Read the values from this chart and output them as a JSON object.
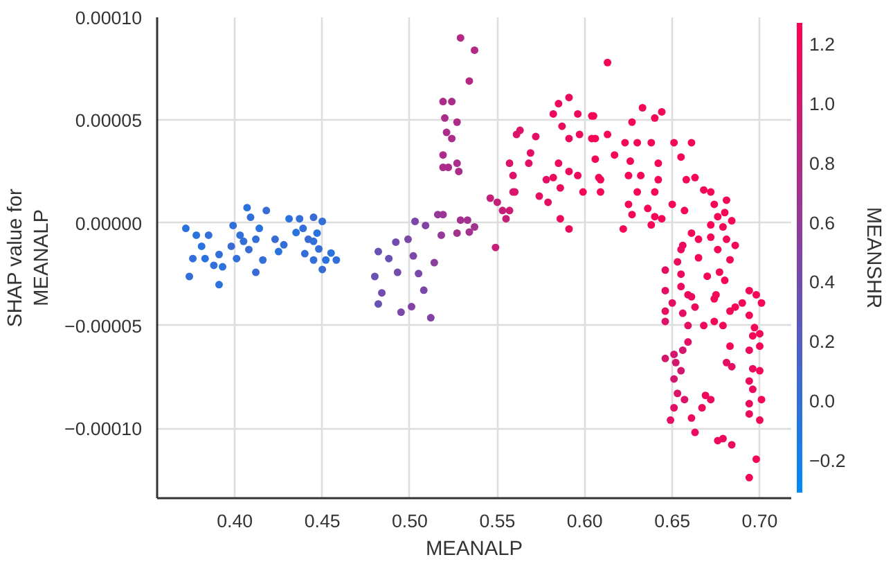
{
  "chart_data": {
    "type": "scatter",
    "xlabel": "MEANALP",
    "ylabel": "SHAP value for\nMEANALP",
    "clabel": "MEANSHR",
    "marker": "circle",
    "grid": true,
    "xlim": [
      0.3556,
      0.718
    ],
    "ylim": [
      -0.000134,
      0.0001
    ],
    "xticks": [
      {
        "value": 0.4,
        "label": "0.40"
      },
      {
        "value": 0.45,
        "label": "0.45"
      },
      {
        "value": 0.5,
        "label": "0.50"
      },
      {
        "value": 0.55,
        "label": "0.55"
      },
      {
        "value": 0.6,
        "label": "0.60"
      },
      {
        "value": 0.65,
        "label": "0.65"
      },
      {
        "value": 0.7,
        "label": "0.70"
      }
    ],
    "yticks": [
      {
        "value": -0.0001,
        "label": "−0.00010"
      },
      {
        "value": -5e-05,
        "label": "−0.00005"
      },
      {
        "value": 0,
        "label": "0.00000"
      },
      {
        "value": 5e-05,
        "label": "0.00005"
      },
      {
        "value": 0.0001,
        "label": "0.00010"
      }
    ],
    "clim": [
      -0.31,
      1.27
    ],
    "cticks": [
      {
        "value": -0.2,
        "label": "−0.2"
      },
      {
        "value": 0,
        "label": "0.0"
      },
      {
        "value": 0.2,
        "label": "0.2"
      },
      {
        "value": 0.4,
        "label": "0.4"
      },
      {
        "value": 0.6,
        "label": "0.6"
      },
      {
        "value": 0.8,
        "label": "0.8"
      },
      {
        "value": 1.0,
        "label": "1.0"
      },
      {
        "value": 1.2,
        "label": "1.2"
      }
    ],
    "series": [
      {
        "x": [
          0.372,
          0.378,
          0.385,
          0.381,
          0.376,
          0.383,
          0.374,
          0.391,
          0.388,
          0.393,
          0.391,
          0.398,
          0.399,
          0.407,
          0.409,
          0.418,
          0.403,
          0.414,
          0.412,
          0.423,
          0.428,
          0.425,
          0.416,
          0.412,
          0.401,
          0.431,
          0.437,
          0.445,
          0.439,
          0.435,
          0.45,
          0.442,
          0.448,
          0.452,
          0.458,
          0.45,
          0.445,
          0.455,
          0.405,
          0.408,
          0.445,
          0.447,
          0.44,
          0.482,
          0.488,
          0.48,
          0.484,
          0.482,
          0.492,
          0.493,
          0.499,
          0.503,
          0.509,
          0.502,
          0.505,
          0.508,
          0.501,
          0.495,
          0.512,
          0.514,
          0.518,
          0.516,
          0.529,
          0.533,
          0.537,
          0.534,
          0.519,
          0.527,
          0.519,
          0.524,
          0.52,
          0.527,
          0.521,
          0.524,
          0.519,
          0.519,
          0.522,
          0.527,
          0.528,
          0.529,
          0.537,
          0.534,
          0.546,
          0.55,
          0.553,
          0.555,
          0.549,
          0.559,
          0.557,
          0.561,
          0.563,
          0.557,
          0.559,
          0.569,
          0.568,
          0.572,
          0.56,
          0.574,
          0.579,
          0.578,
          0.585,
          0.591,
          0.582,
          0.587,
          0.591,
          0.596,
          0.597,
          0.604,
          0.585,
          0.591,
          0.582,
          0.596,
          0.586,
          0.599,
          0.586,
          0.591,
          0.604,
          0.606,
          0.608,
          0.613,
          0.605,
          0.633,
          0.644,
          0.64,
          0.627,
          0.606,
          0.613,
          0.623,
          0.63,
          0.638,
          0.651,
          0.661,
          0.617,
          0.626,
          0.642,
          0.655,
          0.625,
          0.632,
          0.642,
          0.609,
          0.609,
          0.63,
          0.64,
          0.625,
          0.636,
          0.627,
          0.64,
          0.644,
          0.65,
          0.657,
          0.622,
          0.638,
          0.658,
          0.663,
          0.668,
          0.672,
          0.674,
          0.681,
          0.68,
          0.676,
          0.684,
          0.672,
          0.679,
          0.661,
          0.665,
          0.672,
          0.681,
          0.686,
          0.656,
          0.655,
          0.676,
          0.665,
          0.683,
          0.653,
          0.646,
          0.655,
          0.67,
          0.677,
          0.68,
          0.646,
          0.655,
          0.659,
          0.65,
          0.661,
          0.646,
          0.656,
          0.663,
          0.674,
          0.675,
          0.683,
          0.686,
          0.69,
          0.694,
          0.698,
          0.701,
          0.694,
          0.646,
          0.659,
          0.668,
          0.674,
          0.679,
          0.697,
          0.7,
          0.696,
          0.694,
          0.7,
          0.683,
          0.659,
          0.651,
          0.656,
          0.646,
          0.652,
          0.681,
          0.684,
          0.655,
          0.696,
          0.7,
          0.651,
          0.694,
          0.696,
          0.653,
          0.657,
          0.669,
          0.672,
          0.651,
          0.667,
          0.694,
          0.701,
          0.649,
          0.661,
          0.694,
          0.7,
          0.663,
          0.676,
          0.679,
          0.684,
          0.698,
          0.694
        ],
        "values": [
          -2.7e-06,
          -6e-06,
          -6e-06,
          -1.14e-05,
          -1.74e-05,
          -1.74e-05,
          -2.61e-05,
          -3.01e-05,
          -2.07e-05,
          -2.14e-05,
          -1.54e-05,
          -1.14e-05,
          -1.3e-06,
          7.4e-06,
          2.7e-06,
          6e-06,
          -6e-06,
          -2.7e-06,
          -8e-06,
          -8e-06,
          -1.07e-05,
          -1.4e-05,
          -1.81e-05,
          -2.41e-05,
          -1.74e-05,
          2e-06,
          2e-06,
          2.7e-06,
          -2.7e-06,
          -4.7e-06,
          7e-07,
          -8e-06,
          -1.27e-05,
          -1.81e-05,
          -1.81e-05,
          -2.27e-05,
          -1.81e-05,
          -1.47e-05,
          -9e-06,
          -1.3e-05,
          -9e-06,
          -5e-06,
          -1.5e-05,
          -1.4e-05,
          -1.74e-05,
          -2.61e-05,
          -3.41e-05,
          -3.95e-05,
          -9.4e-06,
          -2.41e-05,
          -8e-06,
          7e-07,
          -1.3e-06,
          -1.61e-05,
          -2.47e-05,
          -3.28e-05,
          -4.08e-05,
          -4.35e-05,
          -4.62e-05,
          -1.94e-05,
          -6e-06,
          4e-06,
          1.3e-06,
          1.3e-06,
          -2e-06,
          -4.5e-06,
          4e-06,
          -5e-06,
          5.9e-05,
          5.9e-05,
          5.1e-05,
          4.9e-05,
          4.4e-05,
          4.1e-05,
          3.3e-05,
          2.7e-05,
          2.7e-05,
          2.9e-05,
          2.5e-05,
          9e-05,
          8.4e-05,
          6.9e-05,
          1.2e-05,
          1e-05,
          6e-06,
          2e-06,
          -1.2e-05,
          1.5e-05,
          6e-06,
          4.3e-05,
          4.5e-05,
          2.9e-05,
          2.3e-05,
          3.4e-05,
          2.9e-05,
          4.2e-05,
          1.5e-05,
          1.3e-05,
          1e-05,
          2.1e-05,
          5.8e-05,
          6.1e-05,
          5.3e-05,
          4.7e-05,
          4.1e-05,
          5.3e-05,
          4.3e-05,
          4.1e-05,
          2.9e-05,
          2.5e-05,
          2.2e-05,
          2.3e-05,
          1.7e-05,
          1.5e-05,
          2e-06,
          -3e-06,
          5.2e-05,
          3.1e-05,
          2.2e-05,
          7.8e-05,
          5.2e-05,
          5.6e-05,
          5.4e-05,
          5.1e-05,
          4.9e-05,
          4.1e-05,
          4.3e-05,
          3.9e-05,
          3.9e-05,
          3.9e-05,
          3.9e-05,
          3.9e-05,
          3.3e-05,
          3e-05,
          2.9e-05,
          3.2e-05,
          2.3e-05,
          2.3e-05,
          2.1e-05,
          2.1e-05,
          1.5e-05,
          1.5e-05,
          1.5e-05,
          9e-06,
          7e-06,
          4e-06,
          3e-06,
          2e-06,
          9e-06,
          6e-06,
          -3e-06,
          -1e-06,
          2.1e-05,
          2.2e-05,
          1.6e-05,
          1.5e-05,
          9e-06,
          1.1e-05,
          5e-06,
          3e-06,
          1e-06,
          -1e-06,
          -2e-06,
          -5e-06,
          -8e-06,
          -7e-06,
          -8e-06,
          -1.1e-05,
          -1.1e-05,
          -1.3e-05,
          -1.3e-05,
          -1.7e-05,
          -1.8e-05,
          -1.9e-05,
          -2.3e-05,
          -2.5e-05,
          -2.6e-05,
          -2.4e-05,
          -2.8e-05,
          -3.3e-05,
          -3.1e-05,
          -3.5e-05,
          -3.9e-05,
          -3.6e-05,
          -4.3e-05,
          -4.4e-05,
          -4.1e-05,
          -3.7e-05,
          -3.5e-05,
          -4.3e-05,
          -4.1e-05,
          -3.9e-05,
          -3.3e-05,
          -3.5e-05,
          -3.9e-05,
          -4.5e-05,
          -4.8e-05,
          -5e-05,
          -5e-05,
          -4.8e-05,
          -5e-05,
          -5.1e-05,
          -5.4e-05,
          -5.5e-05,
          -6.2e-05,
          -6e-05,
          -6e-05,
          -5.8e-05,
          -6.4e-05,
          -6.2e-05,
          -6.6e-05,
          -6.8e-05,
          -6.8e-05,
          -7e-05,
          -7.2e-05,
          -7.1e-05,
          -7.2e-05,
          -7.6e-05,
          -7.7e-05,
          -8.1e-05,
          -8.3e-05,
          -8.6e-05,
          -8.4e-05,
          -8.6e-05,
          -9e-05,
          -9e-05,
          -8.8e-05,
          -8.6e-05,
          -9.6e-05,
          -9.5e-05,
          -9.3e-05,
          -9.6e-05,
          -0.000102,
          -0.000106,
          -0.000105,
          -0.000108,
          -0.000115,
          -0.000124
        ],
        "cvalues": [
          -0.05,
          -0.05,
          0.0,
          -0.05,
          0.0,
          -0.05,
          0.0,
          -0.05,
          0.0,
          -0.05,
          0.0,
          0.05,
          0.0,
          -0.05,
          0.0,
          0.05,
          0.0,
          -0.05,
          0.0,
          0.05,
          0.0,
          -0.05,
          0.0,
          0.05,
          0.0,
          -0.05,
          0.0,
          0.05,
          0.0,
          -0.05,
          0.0,
          0.05,
          0.0,
          -0.05,
          0.0,
          0.05,
          0.0,
          -0.05,
          0.0,
          0.05,
          0.0,
          -0.05,
          0.0,
          0.35,
          0.35,
          0.35,
          0.4,
          0.35,
          0.4,
          0.4,
          0.45,
          0.45,
          0.5,
          0.45,
          0.45,
          0.45,
          0.5,
          0.45,
          0.5,
          0.55,
          0.6,
          0.6,
          0.7,
          0.7,
          0.7,
          0.7,
          0.65,
          0.7,
          0.75,
          0.75,
          0.75,
          0.75,
          0.75,
          0.75,
          0.75,
          0.75,
          0.75,
          0.75,
          0.75,
          0.8,
          0.8,
          0.8,
          0.9,
          0.9,
          0.9,
          0.9,
          0.9,
          0.95,
          0.95,
          1.05,
          1.05,
          1.05,
          1.05,
          1.1,
          1.1,
          1.1,
          1.05,
          1.1,
          1.1,
          1.1,
          1.15,
          1.15,
          1.15,
          1.15,
          1.15,
          1.15,
          1.15,
          1.2,
          1.15,
          1.15,
          1.15,
          1.15,
          1.15,
          1.2,
          1.15,
          1.15,
          1.2,
          1.2,
          1.2,
          1.2,
          1.2,
          1.2,
          1.2,
          1.2,
          1.2,
          1.2,
          1.2,
          1.2,
          1.2,
          1.2,
          1.2,
          1.2,
          1.2,
          1.2,
          1.2,
          1.2,
          1.2,
          1.2,
          1.2,
          1.2,
          1.2,
          1.2,
          1.2,
          1.2,
          1.2,
          1.2,
          1.2,
          1.2,
          1.2,
          1.2,
          1.2,
          1.2,
          1.2,
          1.2,
          1.2,
          1.2,
          1.2,
          1.2,
          1.2,
          1.2,
          1.2,
          1.2,
          1.2,
          1.2,
          1.2,
          1.2,
          1.2,
          1.2,
          1.15,
          1.15,
          1.2,
          1.2,
          1.2,
          1.15,
          1.1,
          1.15,
          1.2,
          1.2,
          1.2,
          1.1,
          1.15,
          1.15,
          1.1,
          1.15,
          1.1,
          1.1,
          1.15,
          1.2,
          1.2,
          1.2,
          1.2,
          1.2,
          1.2,
          1.2,
          1.2,
          1.2,
          1.05,
          1.1,
          1.15,
          1.2,
          1.2,
          1.2,
          1.2,
          1.2,
          1.15,
          1.2,
          1.2,
          1.1,
          1.0,
          1.0,
          1.0,
          1.0,
          1.1,
          1.1,
          1.0,
          1.15,
          1.2,
          1.0,
          1.15,
          1.15,
          1.05,
          1.05,
          1.15,
          1.15,
          1.1,
          1.15,
          1.15,
          1.2,
          1.1,
          1.15,
          1.15,
          1.2,
          1.15,
          1.15,
          1.15,
          1.15,
          1.2,
          1.2
        ]
      }
    ]
  }
}
